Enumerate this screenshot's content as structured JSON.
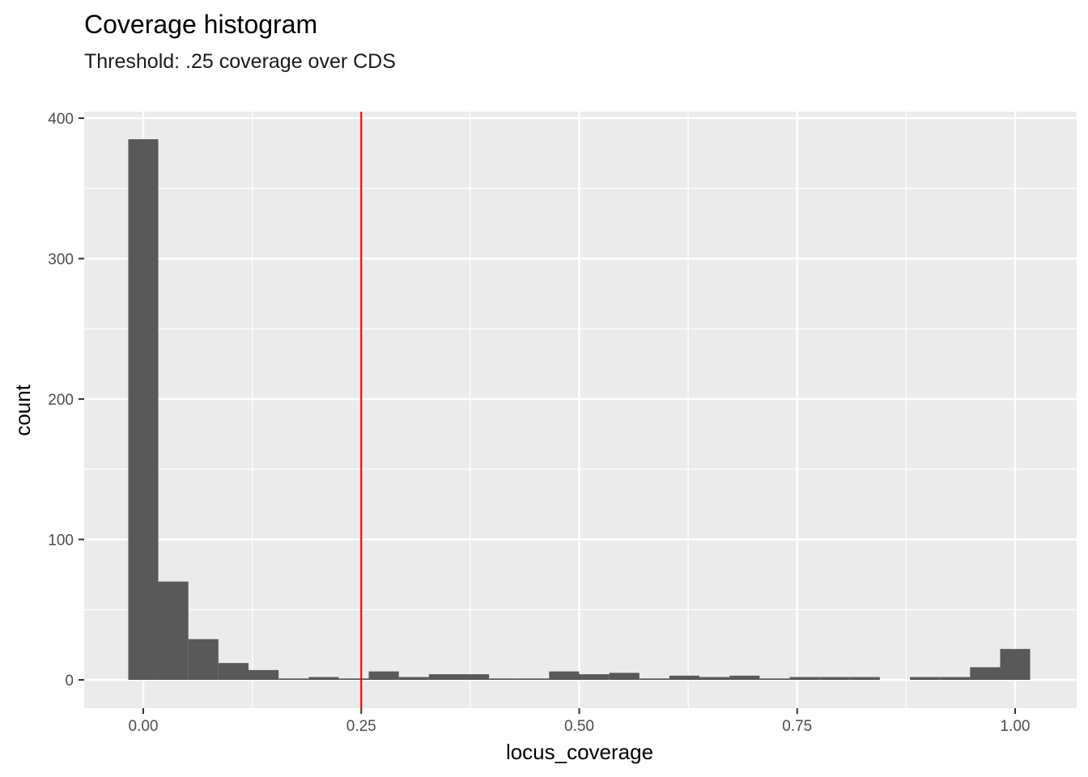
{
  "chart_data": {
    "type": "bar",
    "title": "Coverage histogram",
    "subtitle": "Threshold: .25 coverage over CDS",
    "xlabel": "locus_coverage",
    "ylabel": "count",
    "xlim": [
      -0.0345,
      1.0345
    ],
    "ylim": [
      -20,
      405
    ],
    "x_ticks": [
      0.0,
      0.25,
      0.5,
      0.75,
      1.0
    ],
    "x_tick_labels": [
      "0.00",
      "0.25",
      "0.50",
      "0.75",
      "1.00"
    ],
    "y_ticks": [
      0,
      100,
      200,
      300,
      400
    ],
    "y_tick_labels": [
      "0",
      "100",
      "200",
      "300",
      "400"
    ],
    "bin_width": 0.0345,
    "bins": [
      {
        "x_start": -0.0172,
        "x_end": 0.0172,
        "count": 385
      },
      {
        "x_start": 0.0172,
        "x_end": 0.0517,
        "count": 70
      },
      {
        "x_start": 0.0517,
        "x_end": 0.0862,
        "count": 29
      },
      {
        "x_start": 0.0862,
        "x_end": 0.1207,
        "count": 12
      },
      {
        "x_start": 0.1207,
        "x_end": 0.1552,
        "count": 7
      },
      {
        "x_start": 0.1552,
        "x_end": 0.1897,
        "count": 1
      },
      {
        "x_start": 0.1897,
        "x_end": 0.2241,
        "count": 2
      },
      {
        "x_start": 0.2241,
        "x_end": 0.2586,
        "count": 1
      },
      {
        "x_start": 0.2586,
        "x_end": 0.2931,
        "count": 6
      },
      {
        "x_start": 0.2931,
        "x_end": 0.3276,
        "count": 2
      },
      {
        "x_start": 0.3276,
        "x_end": 0.3621,
        "count": 4
      },
      {
        "x_start": 0.3621,
        "x_end": 0.3966,
        "count": 4
      },
      {
        "x_start": 0.3966,
        "x_end": 0.431,
        "count": 1
      },
      {
        "x_start": 0.431,
        "x_end": 0.4655,
        "count": 1
      },
      {
        "x_start": 0.4655,
        "x_end": 0.5,
        "count": 6
      },
      {
        "x_start": 0.5,
        "x_end": 0.5345,
        "count": 4
      },
      {
        "x_start": 0.5345,
        "x_end": 0.569,
        "count": 5
      },
      {
        "x_start": 0.569,
        "x_end": 0.6034,
        "count": 1
      },
      {
        "x_start": 0.6034,
        "x_end": 0.6379,
        "count": 3
      },
      {
        "x_start": 0.6379,
        "x_end": 0.6724,
        "count": 2
      },
      {
        "x_start": 0.6724,
        "x_end": 0.7069,
        "count": 3
      },
      {
        "x_start": 0.7069,
        "x_end": 0.7414,
        "count": 1
      },
      {
        "x_start": 0.7414,
        "x_end": 0.7759,
        "count": 2
      },
      {
        "x_start": 0.7759,
        "x_end": 0.8103,
        "count": 2
      },
      {
        "x_start": 0.8103,
        "x_end": 0.8448,
        "count": 2
      },
      {
        "x_start": 0.8448,
        "x_end": 0.8793,
        "count": 0
      },
      {
        "x_start": 0.8793,
        "x_end": 0.9138,
        "count": 2
      },
      {
        "x_start": 0.9138,
        "x_end": 0.9483,
        "count": 2
      },
      {
        "x_start": 0.9483,
        "x_end": 0.9828,
        "count": 9
      },
      {
        "x_start": 0.9828,
        "x_end": 1.0172,
        "count": 22
      }
    ],
    "threshold_line": {
      "x": 0.25,
      "color": "#ff0000"
    },
    "bar_color": "#595959",
    "panel_background": "#ebebeb",
    "grid": true,
    "legend": "none"
  }
}
